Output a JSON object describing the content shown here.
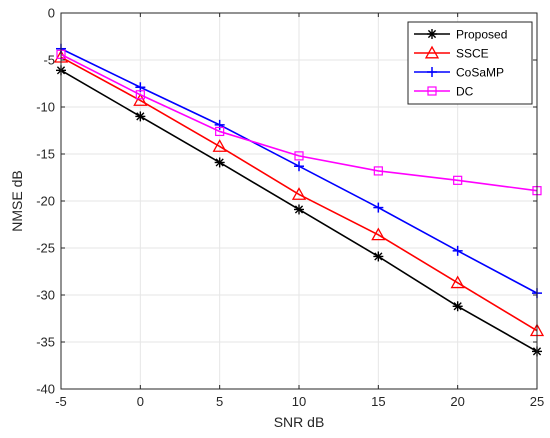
{
  "chart_data": {
    "type": "line",
    "title": "",
    "xlabel": "SNR dB",
    "ylabel": "NMSE dB",
    "x": [
      -5,
      0,
      5,
      10,
      15,
      20,
      25
    ],
    "xlim": [
      -5,
      25
    ],
    "ylim": [
      -40,
      0
    ],
    "xticks": [
      "-5",
      "0",
      "5",
      "10",
      "15",
      "20",
      "25"
    ],
    "yticks": [
      "0",
      "-5",
      "-10",
      "-15",
      "-20",
      "-25",
      "-30",
      "-35",
      "-40"
    ],
    "grid": true,
    "legend_position": "top-right",
    "series": [
      {
        "name": "Proposed",
        "color": "#000000",
        "marker": "asterisk",
        "values": [
          -6.1,
          -11.0,
          -15.9,
          -20.9,
          -25.9,
          -31.2,
          -36.0
        ]
      },
      {
        "name": "SSCE",
        "color": "#ff0000",
        "marker": "triangle",
        "values": [
          -4.7,
          -9.3,
          -14.2,
          -19.3,
          -23.6,
          -28.7,
          -33.8
        ]
      },
      {
        "name": "CoSaMP",
        "color": "#0000ff",
        "marker": "plus",
        "values": [
          -3.8,
          -7.9,
          -11.9,
          -16.3,
          -20.7,
          -25.3,
          -29.8
        ]
      },
      {
        "name": "DC",
        "color": "#ff00ff",
        "marker": "square",
        "values": [
          -4.4,
          -8.7,
          -12.6,
          -15.2,
          -16.8,
          -17.8,
          -18.9
        ]
      }
    ]
  }
}
